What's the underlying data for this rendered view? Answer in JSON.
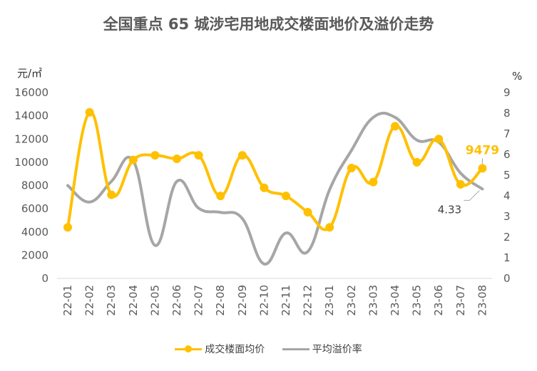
{
  "chart_data": {
    "type": "line",
    "title": "全国重点 65 城涉宅用地成交楼面地价及溢价走势",
    "ylabel": "元/㎡",
    "y2label": "%",
    "categories": [
      "22-01",
      "22-02",
      "22-03",
      "22-04",
      "22-05",
      "22-06",
      "22-07",
      "22-08",
      "22-09",
      "22-10",
      "22-11",
      "22-12",
      "23-01",
      "23-02",
      "23-03",
      "23-04",
      "23-05",
      "23-06",
      "23-07",
      "23-08"
    ],
    "ylim": [
      0,
      16000
    ],
    "yticks": [
      "0",
      "2000",
      "4000",
      "6000",
      "8000",
      "10000",
      "12000",
      "14000",
      "16000"
    ],
    "y2lim": [
      0,
      9
    ],
    "y2ticks": [
      "0",
      "1",
      "2",
      "3",
      "4",
      "5",
      "6",
      "7",
      "8",
      "9"
    ],
    "grid": false,
    "legend_position": "bottom",
    "series": [
      {
        "name": "成交楼面均价",
        "axis": "left",
        "color": "#FFC000",
        "markers": true,
        "values": [
          4400,
          14300,
          7200,
          10200,
          10600,
          10300,
          10600,
          7100,
          10600,
          7800,
          7100,
          5700,
          4400,
          9500,
          8300,
          13100,
          10000,
          12000,
          8100,
          9479
        ]
      },
      {
        "name": "平均溢价率",
        "axis": "right",
        "color": "#A6A6A6",
        "markers": false,
        "values": [
          4.5,
          3.7,
          4.7,
          5.7,
          1.6,
          4.7,
          3.4,
          3.2,
          2.9,
          0.7,
          2.2,
          1.3,
          4.3,
          6.2,
          7.8,
          7.8,
          6.7,
          6.6,
          5.1,
          4.33
        ]
      }
    ],
    "annotations": [
      {
        "series": "成交楼面均价",
        "index": 19,
        "text": "9479",
        "color": "#FFC000"
      },
      {
        "series": "平均溢价率",
        "index": 19,
        "text": "4.33",
        "color": "#404040"
      }
    ]
  }
}
